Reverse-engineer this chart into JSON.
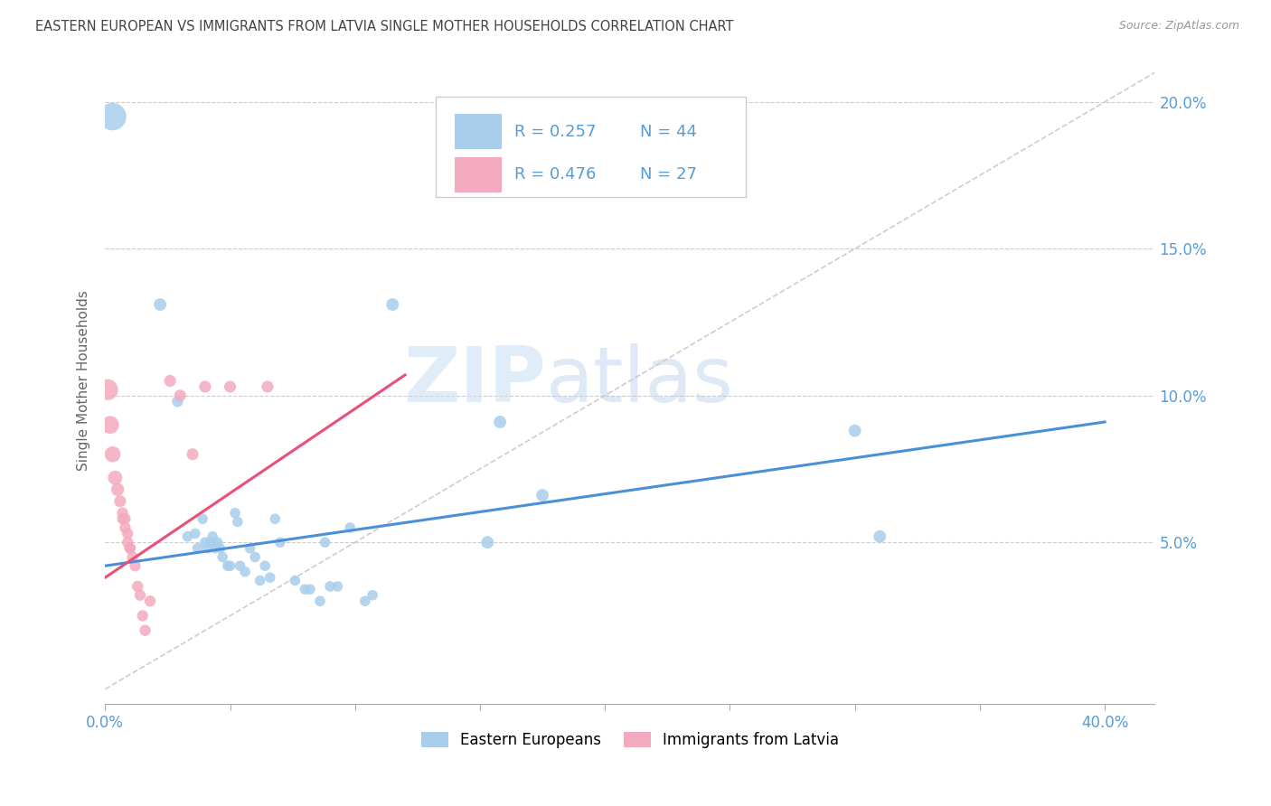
{
  "title": "EASTERN EUROPEAN VS IMMIGRANTS FROM LATVIA SINGLE MOTHER HOUSEHOLDS CORRELATION CHART",
  "source": "Source: ZipAtlas.com",
  "ylabel": "Single Mother Households",
  "xlim": [
    0.0,
    0.42
  ],
  "ylim": [
    -0.005,
    0.215
  ],
  "plot_ylim": [
    0.0,
    0.21
  ],
  "xticks": [
    0.0,
    0.05,
    0.1,
    0.15,
    0.2,
    0.25,
    0.3,
    0.35,
    0.4
  ],
  "xticklabels": [
    "0.0%",
    "",
    "",
    "",
    "",
    "",
    "",
    "",
    "40.0%"
  ],
  "yticks": [
    0.05,
    0.1,
    0.15,
    0.2
  ],
  "yticklabels": [
    "5.0%",
    "10.0%",
    "15.0%",
    "20.0%"
  ],
  "grid_color": "#cccccc",
  "bg_color": "#ffffff",
  "watermark_zip": "ZIP",
  "watermark_atlas": "atlas",
  "legend_r1": "R = 0.257",
  "legend_n1": "N = 44",
  "legend_r2": "R = 0.476",
  "legend_n2": "N = 27",
  "blue_color": "#A8CEEC",
  "pink_color": "#F4AABE",
  "blue_line_color": "#4A90D9",
  "pink_line_color": "#E8507A",
  "dashed_line_color": "#C8C8C8",
  "title_color": "#444444",
  "axis_tick_color": "#5B9BD5",
  "blue_points": [
    [
      0.003,
      0.195
    ],
    [
      0.022,
      0.131
    ],
    [
      0.029,
      0.098
    ],
    [
      0.033,
      0.052
    ],
    [
      0.036,
      0.053
    ],
    [
      0.037,
      0.048
    ],
    [
      0.039,
      0.058
    ],
    [
      0.04,
      0.05
    ],
    [
      0.041,
      0.048
    ],
    [
      0.042,
      0.05
    ],
    [
      0.043,
      0.052
    ],
    [
      0.044,
      0.048
    ],
    [
      0.045,
      0.05
    ],
    [
      0.046,
      0.048
    ],
    [
      0.047,
      0.045
    ],
    [
      0.049,
      0.042
    ],
    [
      0.05,
      0.042
    ],
    [
      0.052,
      0.06
    ],
    [
      0.053,
      0.057
    ],
    [
      0.054,
      0.042
    ],
    [
      0.056,
      0.04
    ],
    [
      0.058,
      0.048
    ],
    [
      0.06,
      0.045
    ],
    [
      0.062,
      0.037
    ],
    [
      0.064,
      0.042
    ],
    [
      0.066,
      0.038
    ],
    [
      0.068,
      0.058
    ],
    [
      0.07,
      0.05
    ],
    [
      0.076,
      0.037
    ],
    [
      0.08,
      0.034
    ],
    [
      0.082,
      0.034
    ],
    [
      0.086,
      0.03
    ],
    [
      0.088,
      0.05
    ],
    [
      0.09,
      0.035
    ],
    [
      0.093,
      0.035
    ],
    [
      0.098,
      0.055
    ],
    [
      0.104,
      0.03
    ],
    [
      0.107,
      0.032
    ],
    [
      0.115,
      0.131
    ],
    [
      0.153,
      0.05
    ],
    [
      0.158,
      0.091
    ],
    [
      0.175,
      0.066
    ],
    [
      0.3,
      0.088
    ],
    [
      0.31,
      0.052
    ]
  ],
  "blue_sizes": [
    480,
    100,
    80,
    70,
    70,
    70,
    70,
    70,
    70,
    70,
    70,
    70,
    70,
    70,
    70,
    70,
    70,
    70,
    70,
    70,
    70,
    70,
    70,
    70,
    70,
    70,
    70,
    70,
    70,
    70,
    70,
    70,
    70,
    70,
    70,
    70,
    70,
    70,
    100,
    100,
    100,
    100,
    100,
    100
  ],
  "pink_points": [
    [
      0.001,
      0.102
    ],
    [
      0.002,
      0.09
    ],
    [
      0.003,
      0.08
    ],
    [
      0.004,
      0.072
    ],
    [
      0.005,
      0.068
    ],
    [
      0.006,
      0.064
    ],
    [
      0.007,
      0.06
    ],
    [
      0.007,
      0.058
    ],
    [
      0.008,
      0.058
    ],
    [
      0.008,
      0.055
    ],
    [
      0.009,
      0.053
    ],
    [
      0.009,
      0.05
    ],
    [
      0.01,
      0.048
    ],
    [
      0.01,
      0.048
    ],
    [
      0.011,
      0.045
    ],
    [
      0.012,
      0.042
    ],
    [
      0.013,
      0.035
    ],
    [
      0.014,
      0.032
    ],
    [
      0.015,
      0.025
    ],
    [
      0.016,
      0.02
    ],
    [
      0.018,
      0.03
    ],
    [
      0.026,
      0.105
    ],
    [
      0.03,
      0.1
    ],
    [
      0.035,
      0.08
    ],
    [
      0.04,
      0.103
    ],
    [
      0.05,
      0.103
    ],
    [
      0.065,
      0.103
    ]
  ],
  "pink_sizes": [
    280,
    200,
    160,
    130,
    110,
    90,
    80,
    80,
    80,
    80,
    80,
    80,
    80,
    80,
    80,
    80,
    80,
    80,
    80,
    80,
    80,
    90,
    90,
    90,
    90,
    90,
    90
  ],
  "blue_trendline": [
    [
      0.0,
      0.042
    ],
    [
      0.4,
      0.091
    ]
  ],
  "pink_trendline": [
    [
      0.0,
      0.038
    ],
    [
      0.12,
      0.107
    ]
  ],
  "dashed_line": [
    [
      0.0,
      0.0
    ],
    [
      0.42,
      0.21
    ]
  ]
}
